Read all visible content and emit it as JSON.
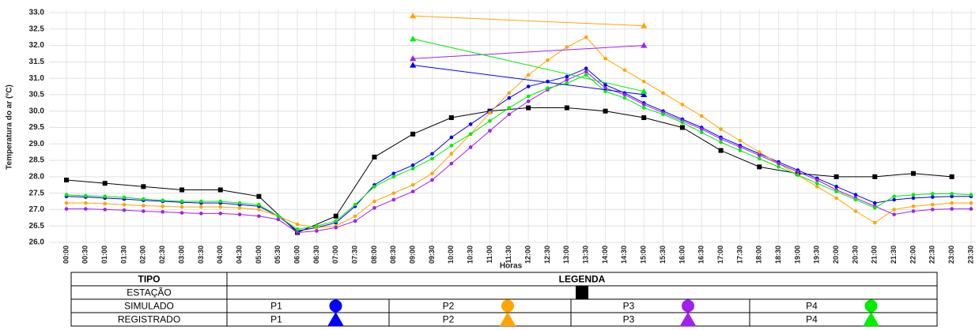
{
  "chart_data": {
    "type": "line",
    "y_label": "Temperatura do ar (°C)",
    "x_label": "Horas",
    "categories": [
      "00:00",
      "00:30",
      "01:00",
      "01:30",
      "02:00",
      "02:30",
      "03:00",
      "03:30",
      "04:00",
      "04:30",
      "05:00",
      "05:30",
      "06:00",
      "06:30",
      "07:00",
      "07:30",
      "08:00",
      "08:30",
      "09:00",
      "09:30",
      "10:00",
      "10:30",
      "11:00",
      "11:30",
      "12:00",
      "12:30",
      "13:00",
      "13:30",
      "14:00",
      "14:30",
      "15:00",
      "15:30",
      "16:00",
      "16:30",
      "17:00",
      "17:30",
      "18:00",
      "18:30",
      "19:00",
      "19:30",
      "20:00",
      "20:30",
      "21:00",
      "21:30",
      "22:00",
      "22:30",
      "23:00",
      "23:30"
    ],
    "ylim": [
      26,
      33
    ],
    "yticks": [
      {
        "value": 26,
        "label": "26.0"
      },
      26.5,
      {
        "value": 27,
        "label": "27.0"
      },
      27.5,
      {
        "value": 28,
        "label": "28.0"
      },
      28.5,
      {
        "value": 29,
        "label": "29.0"
      },
      29.5,
      {
        "value": 30,
        "label": "30.0"
      },
      30.5,
      {
        "value": 31,
        "label": "31.0"
      },
      31.5,
      {
        "value": 32,
        "label": "32.0"
      },
      32.5,
      {
        "value": 33,
        "label": "33.0"
      }
    ],
    "grid": true,
    "legend_headers": [
      "TIPO",
      "LEGENDA"
    ],
    "legend_groups": [
      "ESTAÇÃO",
      "SIMULADO",
      "REGISTRADO"
    ],
    "series": [
      {
        "group": "ESTAÇÃO",
        "marker": "square",
        "color": "#000000",
        "x": [
          "00:00",
          "01:00",
          "02:00",
          "03:00",
          "04:00",
          "05:00",
          "06:00",
          "07:00",
          "08:00",
          "09:00",
          "10:00",
          "11:00",
          "12:00",
          "13:00",
          "14:00",
          "15:00",
          "16:00",
          "17:00",
          "18:00",
          "19:00",
          "20:00",
          "21:00",
          "22:00",
          "23:00"
        ],
        "values": [
          27.9,
          27.8,
          27.7,
          27.6,
          27.6,
          27.4,
          26.3,
          26.8,
          28.6,
          29.3,
          29.8,
          30.0,
          30.1,
          30.1,
          30.0,
          29.8,
          29.5,
          28.8,
          28.3,
          28.1,
          28.0,
          28.0,
          28.1,
          28.0
        ]
      },
      {
        "group": "SIMULADO",
        "name": "P1",
        "marker": "circle",
        "color": "#0000ff",
        "values": [
          27.4,
          27.38,
          27.35,
          27.32,
          27.28,
          27.25,
          27.22,
          27.2,
          27.2,
          27.15,
          27.1,
          26.8,
          26.35,
          26.45,
          26.6,
          27.1,
          27.75,
          28.1,
          28.35,
          28.7,
          29.2,
          29.6,
          30.0,
          30.4,
          30.75,
          30.9,
          31.05,
          31.3,
          30.8,
          30.55,
          30.25,
          30.0,
          29.75,
          29.5,
          29.2,
          28.95,
          28.7,
          28.45,
          28.2,
          27.95,
          27.7,
          27.45,
          27.2,
          27.3,
          27.35,
          27.38,
          27.4,
          27.4
        ]
      },
      {
        "group": "SIMULADO",
        "name": "P2",
        "marker": "circle",
        "color": "#ffa500",
        "values": [
          27.2,
          27.2,
          27.18,
          27.15,
          27.12,
          27.1,
          27.08,
          27.08,
          27.08,
          27.05,
          27.0,
          26.8,
          26.55,
          26.45,
          26.5,
          26.8,
          27.25,
          27.5,
          27.75,
          28.1,
          28.7,
          29.3,
          29.95,
          30.55,
          31.1,
          31.55,
          31.95,
          32.25,
          31.6,
          31.25,
          30.9,
          30.55,
          30.2,
          29.85,
          29.45,
          29.1,
          28.75,
          28.4,
          28.05,
          27.7,
          27.35,
          26.95,
          26.6,
          27.0,
          27.1,
          27.15,
          27.2,
          27.2
        ]
      },
      {
        "group": "SIMULADO",
        "name": "P3",
        "marker": "circle",
        "color": "#a020f0",
        "values": [
          27.02,
          27.02,
          27.0,
          26.98,
          26.95,
          26.93,
          26.9,
          26.88,
          26.88,
          26.85,
          26.8,
          26.7,
          26.3,
          26.35,
          26.45,
          26.65,
          27.05,
          27.3,
          27.55,
          27.9,
          28.4,
          28.9,
          29.4,
          29.9,
          30.3,
          30.65,
          30.95,
          31.2,
          30.7,
          30.5,
          30.2,
          29.95,
          29.7,
          29.45,
          29.15,
          28.9,
          28.65,
          28.4,
          28.15,
          27.9,
          27.6,
          27.35,
          27.1,
          26.85,
          26.95,
          27.0,
          27.02,
          27.02
        ]
      },
      {
        "group": "SIMULADO",
        "name": "P4",
        "marker": "circle",
        "color": "#00ee00",
        "values": [
          27.45,
          27.42,
          27.4,
          27.37,
          27.32,
          27.28,
          27.25,
          27.25,
          27.25,
          27.2,
          27.15,
          26.8,
          26.4,
          26.5,
          26.65,
          27.15,
          27.7,
          28.0,
          28.25,
          28.55,
          28.95,
          29.3,
          29.7,
          30.1,
          30.45,
          30.7,
          30.85,
          31.1,
          30.6,
          30.4,
          30.1,
          29.9,
          29.65,
          29.35,
          29.05,
          28.8,
          28.55,
          28.3,
          28.05,
          27.8,
          27.55,
          27.3,
          27.05,
          27.4,
          27.45,
          27.48,
          27.48,
          27.45
        ]
      },
      {
        "group": "REGISTRADO",
        "name": "P1",
        "marker": "triangle",
        "color": "#0000ff",
        "x": [
          "09:00",
          "15:00"
        ],
        "values": [
          31.4,
          30.5
        ]
      },
      {
        "group": "REGISTRADO",
        "name": "P2",
        "marker": "triangle",
        "color": "#ffa500",
        "x": [
          "09:00",
          "15:00"
        ],
        "values": [
          32.9,
          32.6
        ]
      },
      {
        "group": "REGISTRADO",
        "name": "P3",
        "marker": "triangle",
        "color": "#a020f0",
        "x": [
          "09:00",
          "15:00"
        ],
        "values": [
          31.6,
          32.0
        ]
      },
      {
        "group": "REGISTRADO",
        "name": "P4",
        "marker": "triangle",
        "color": "#00ee00",
        "x": [
          "09:00",
          "15:00"
        ],
        "values": [
          32.2,
          30.6
        ]
      }
    ]
  }
}
